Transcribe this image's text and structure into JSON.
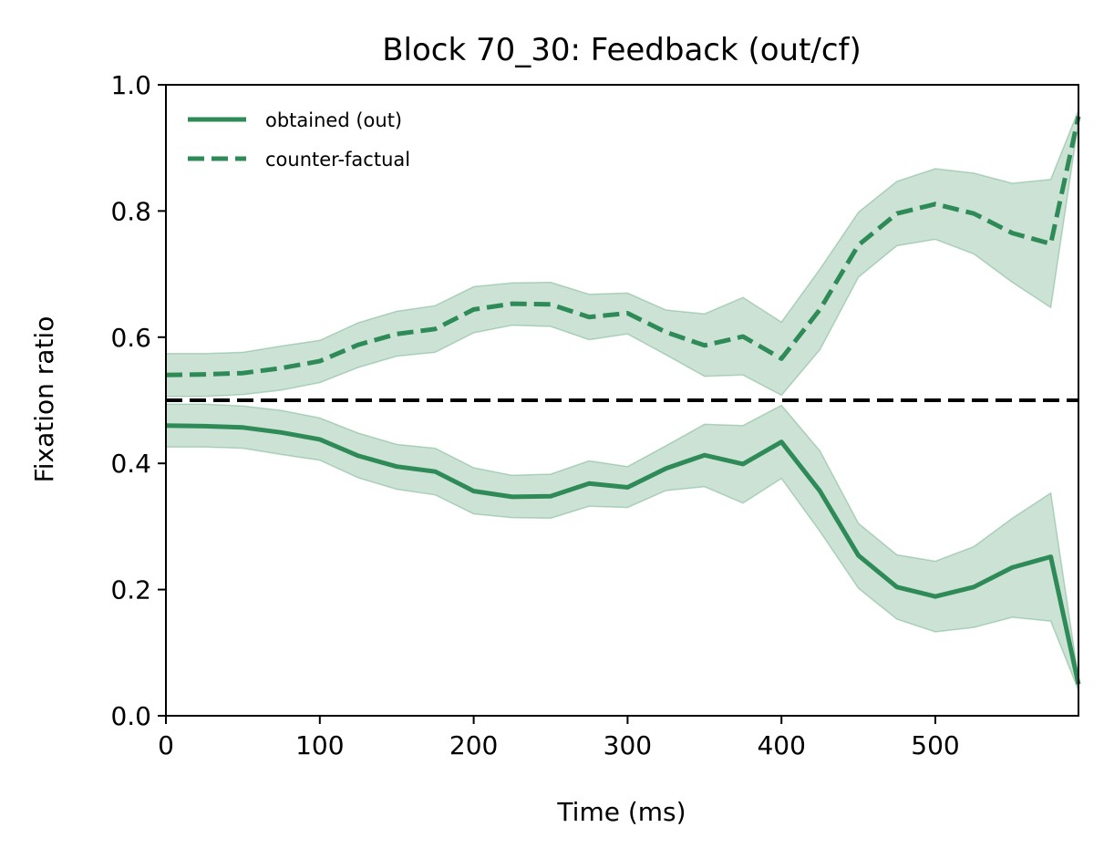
{
  "chart_data": {
    "type": "line",
    "title": "Block 70_30: Feedback (out/cf)",
    "xlabel": "Time (ms)",
    "ylabel": "Fixation ratio",
    "xlim": [
      0,
      593
    ],
    "ylim": [
      0,
      1.0
    ],
    "xticks": [
      0,
      100,
      200,
      300,
      400,
      500
    ],
    "xtick_labels": [
      "0",
      "100",
      "200",
      "300",
      "400",
      "500"
    ],
    "yticks": [
      0.0,
      0.2,
      0.4,
      0.6,
      0.8,
      1.0
    ],
    "ytick_labels": [
      "0.0",
      "0.2",
      "0.4",
      "0.6",
      "0.8",
      "1.0"
    ],
    "grid": false,
    "legend_position": "top-left",
    "reference_line": {
      "y": 0.5,
      "style": "dashed",
      "color": "#000000"
    },
    "colors": {
      "series": "#2e8b57",
      "band": "#2e8b57"
    },
    "x": [
      0,
      25,
      50,
      75,
      100,
      125,
      150,
      175,
      200,
      225,
      250,
      275,
      300,
      325,
      350,
      375,
      400,
      425,
      450,
      475,
      500,
      525,
      550,
      575,
      593
    ],
    "series": [
      {
        "name": "obtained (out)",
        "style": "solid",
        "values": [
          0.46,
          0.459,
          0.457,
          0.449,
          0.438,
          0.412,
          0.395,
          0.387,
          0.356,
          0.347,
          0.348,
          0.368,
          0.362,
          0.392,
          0.413,
          0.399,
          0.434,
          0.356,
          0.254,
          0.204,
          0.189,
          0.204,
          0.235,
          0.252,
          0.05
        ],
        "upper": [
          0.494,
          0.494,
          0.491,
          0.484,
          0.472,
          0.448,
          0.43,
          0.424,
          0.393,
          0.381,
          0.383,
          0.404,
          0.395,
          0.428,
          0.462,
          0.46,
          0.492,
          0.42,
          0.305,
          0.255,
          0.245,
          0.268,
          0.313,
          0.353,
          0.06
        ],
        "lower": [
          0.426,
          0.426,
          0.424,
          0.414,
          0.405,
          0.377,
          0.359,
          0.35,
          0.32,
          0.314,
          0.313,
          0.332,
          0.33,
          0.357,
          0.363,
          0.337,
          0.376,
          0.292,
          0.202,
          0.153,
          0.133,
          0.14,
          0.156,
          0.15,
          0.04
        ]
      },
      {
        "name": "counter-factual",
        "style": "dashed",
        "values": [
          0.54,
          0.541,
          0.543,
          0.551,
          0.562,
          0.588,
          0.605,
          0.613,
          0.644,
          0.653,
          0.652,
          0.632,
          0.638,
          0.608,
          0.587,
          0.601,
          0.566,
          0.644,
          0.746,
          0.796,
          0.811,
          0.796,
          0.765,
          0.748,
          0.95
        ]
      }
    ]
  }
}
